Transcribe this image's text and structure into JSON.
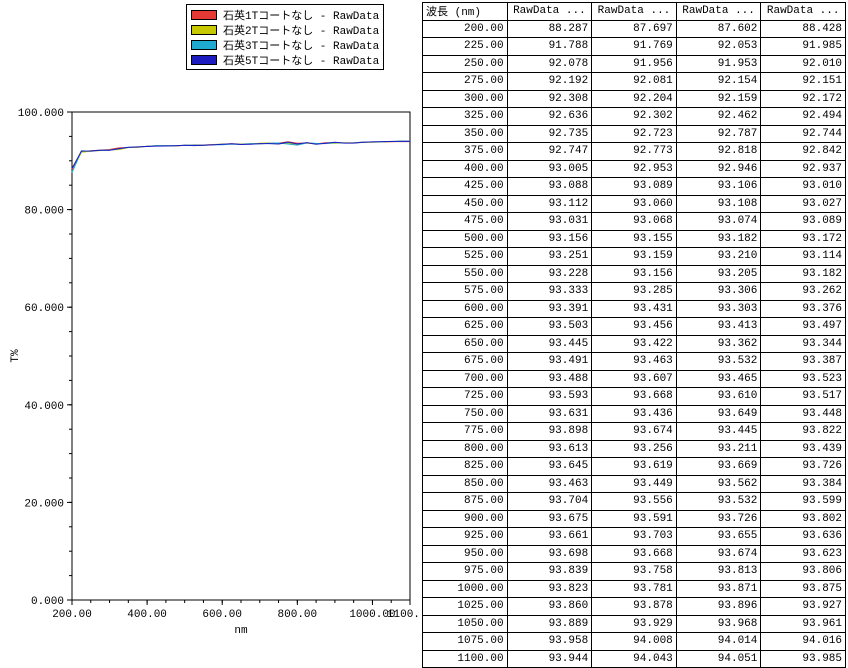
{
  "legend": {
    "items": [
      {
        "label": "石英1Tコートなし - RawData",
        "color": "#e53935"
      },
      {
        "label": "石英2Tコートなし - RawData",
        "color": "#c8c800"
      },
      {
        "label": "石英3Tコートなし - RawData",
        "color": "#1faad1"
      },
      {
        "label": "石英5Tコートなし - RawData",
        "color": "#1b1bc0"
      }
    ]
  },
  "chart": {
    "type": "line",
    "xlabel": "nm",
    "ylabel": "T%",
    "xlim": [
      200,
      1100
    ],
    "ylim": [
      0,
      100
    ],
    "xticks": [
      200,
      400,
      600,
      800,
      1000,
      1100
    ],
    "xtick_labels": [
      "200.00",
      "400.00",
      "600.00",
      "800.00",
      "1000.00",
      "1100.00"
    ],
    "yticks": [
      0,
      20,
      40,
      60,
      80,
      100
    ],
    "ytick_labels": [
      "0.000",
      "20.000",
      "40.000",
      "60.000",
      "80.000",
      "100.000"
    ],
    "axis_color": "#000000",
    "background_color": "#ffffff",
    "label_fontsize": 11,
    "line_width": 1,
    "series_colors": [
      "#e53935",
      "#c8c800",
      "#1faad1",
      "#1b1bc0"
    ]
  },
  "table": {
    "columns": [
      "波長 (nm)",
      "RawData ...",
      "RawData ...",
      "RawData ...",
      "RawData ..."
    ],
    "rows": [
      [
        "200.00",
        "88.287",
        "87.697",
        "87.602",
        "88.428"
      ],
      [
        "225.00",
        "91.788",
        "91.769",
        "92.053",
        "91.985"
      ],
      [
        "250.00",
        "92.078",
        "91.956",
        "91.953",
        "92.010"
      ],
      [
        "275.00",
        "92.192",
        "92.081",
        "92.154",
        "92.151"
      ],
      [
        "300.00",
        "92.308",
        "92.204",
        "92.159",
        "92.172"
      ],
      [
        "325.00",
        "92.636",
        "92.302",
        "92.462",
        "92.494"
      ],
      [
        "350.00",
        "92.735",
        "92.723",
        "92.787",
        "92.744"
      ],
      [
        "375.00",
        "92.747",
        "92.773",
        "92.818",
        "92.842"
      ],
      [
        "400.00",
        "93.005",
        "92.953",
        "92.946",
        "92.937"
      ],
      [
        "425.00",
        "93.088",
        "93.089",
        "93.106",
        "93.010"
      ],
      [
        "450.00",
        "93.112",
        "93.060",
        "93.108",
        "93.027"
      ],
      [
        "475.00",
        "93.031",
        "93.068",
        "93.074",
        "93.089"
      ],
      [
        "500.00",
        "93.156",
        "93.155",
        "93.182",
        "93.172"
      ],
      [
        "525.00",
        "93.251",
        "93.159",
        "93.210",
        "93.114"
      ],
      [
        "550.00",
        "93.228",
        "93.156",
        "93.205",
        "93.182"
      ],
      [
        "575.00",
        "93.333",
        "93.285",
        "93.306",
        "93.262"
      ],
      [
        "600.00",
        "93.391",
        "93.431",
        "93.303",
        "93.376"
      ],
      [
        "625.00",
        "93.503",
        "93.456",
        "93.413",
        "93.497"
      ],
      [
        "650.00",
        "93.445",
        "93.422",
        "93.362",
        "93.344"
      ],
      [
        "675.00",
        "93.491",
        "93.463",
        "93.532",
        "93.387"
      ],
      [
        "700.00",
        "93.488",
        "93.607",
        "93.465",
        "93.523"
      ],
      [
        "725.00",
        "93.593",
        "93.668",
        "93.610",
        "93.517"
      ],
      [
        "750.00",
        "93.631",
        "93.436",
        "93.649",
        "93.448"
      ],
      [
        "775.00",
        "93.898",
        "93.674",
        "93.445",
        "93.822"
      ],
      [
        "800.00",
        "93.613",
        "93.256",
        "93.211",
        "93.439"
      ],
      [
        "825.00",
        "93.645",
        "93.619",
        "93.669",
        "93.726"
      ],
      [
        "850.00",
        "93.463",
        "93.449",
        "93.562",
        "93.384"
      ],
      [
        "875.00",
        "93.704",
        "93.556",
        "93.532",
        "93.599"
      ],
      [
        "900.00",
        "93.675",
        "93.591",
        "93.726",
        "93.802"
      ],
      [
        "925.00",
        "93.661",
        "93.703",
        "93.655",
        "93.636"
      ],
      [
        "950.00",
        "93.698",
        "93.668",
        "93.674",
        "93.623"
      ],
      [
        "975.00",
        "93.839",
        "93.758",
        "93.813",
        "93.806"
      ],
      [
        "1000.00",
        "93.823",
        "93.781",
        "93.871",
        "93.875"
      ],
      [
        "1025.00",
        "93.860",
        "93.878",
        "93.896",
        "93.927"
      ],
      [
        "1050.00",
        "93.889",
        "93.929",
        "93.968",
        "93.961"
      ],
      [
        "1075.00",
        "93.958",
        "94.008",
        "94.014",
        "94.016"
      ],
      [
        "1100.00",
        "93.944",
        "94.043",
        "94.051",
        "93.985"
      ]
    ]
  }
}
